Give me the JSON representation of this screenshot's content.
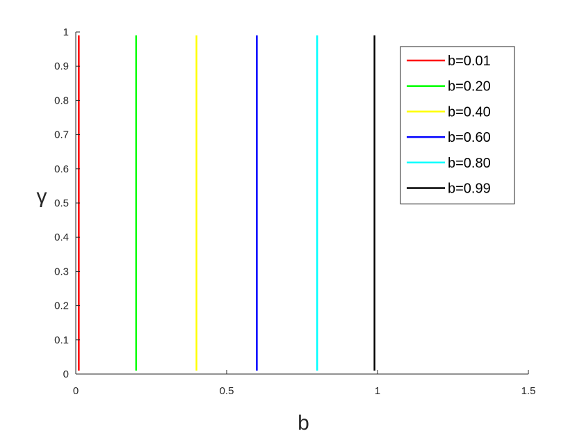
{
  "chart_data": {
    "type": "line",
    "title": "",
    "xlabel": "b",
    "ylabel": "γ",
    "xlim": [
      0,
      1.5
    ],
    "ylim": [
      0,
      1
    ],
    "xticks": [
      0,
      0.5,
      1,
      1.5
    ],
    "xtick_labels": [
      "0",
      "0.5",
      "1",
      "1.5"
    ],
    "yticks": [
      0,
      0.1,
      0.2,
      0.3,
      0.4,
      0.5,
      0.6,
      0.7,
      0.8,
      0.9,
      1
    ],
    "ytick_labels": [
      "0",
      "0.1",
      "0.2",
      "0.3",
      "0.4",
      "0.5",
      "0.6",
      "0.7",
      "0.8",
      "0.9",
      "1"
    ],
    "grid": false,
    "legend_position": "top-right",
    "series": [
      {
        "name": "b=0.01",
        "color": "#ff0000",
        "x": [
          0.01,
          0.01
        ],
        "y": [
          0.01,
          0.99
        ]
      },
      {
        "name": "b=0.20",
        "color": "#00ff00",
        "x": [
          0.2,
          0.2
        ],
        "y": [
          0.01,
          0.99
        ]
      },
      {
        "name": "b=0.40",
        "color": "#ffff00",
        "x": [
          0.4,
          0.4
        ],
        "y": [
          0.01,
          0.99
        ]
      },
      {
        "name": "b=0.60",
        "color": "#0000ff",
        "x": [
          0.6,
          0.6
        ],
        "y": [
          0.01,
          0.99
        ]
      },
      {
        "name": "b=0.80",
        "color": "#00ffff",
        "x": [
          0.8,
          0.8
        ],
        "y": [
          0.01,
          0.99
        ]
      },
      {
        "name": "b=0.99",
        "color": "#000000",
        "x": [
          0.99,
          0.99
        ],
        "y": [
          0.01,
          0.99
        ]
      }
    ]
  }
}
